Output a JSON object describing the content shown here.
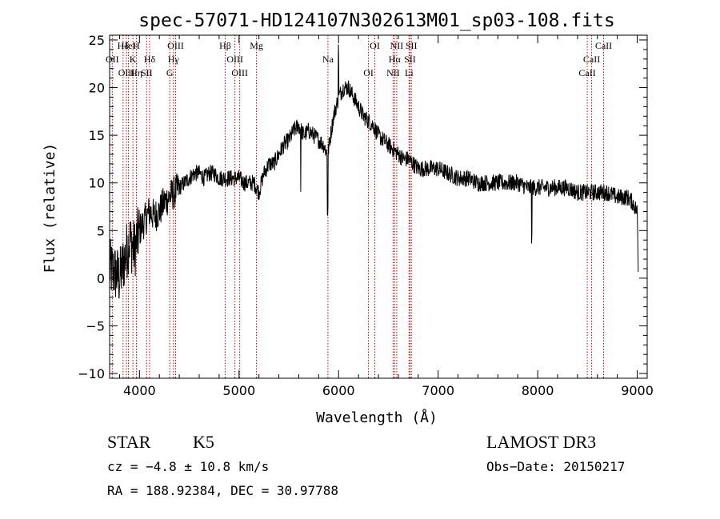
{
  "chart_data": {
    "type": "line",
    "title": "spec-57071-HD124107N302613M01_sp03-108.fits",
    "xlabel": "Wavelength (Å)",
    "ylabel": "Flux (relative)",
    "xlim": [
      3700,
      9100
    ],
    "ylim": [
      -10.5,
      25.5
    ],
    "x_ticks": [
      4000,
      5000,
      6000,
      7000,
      8000,
      9000
    ],
    "y_ticks": [
      -10,
      -5,
      0,
      5,
      10,
      15,
      20,
      25
    ],
    "x_tick_labels": [
      "4000",
      "5000",
      "6000",
      "7000",
      "8000",
      "9000"
    ],
    "y_tick_labels": [
      "−10",
      "−5",
      "0",
      "5",
      "10",
      "15",
      "20",
      "25"
    ],
    "spectrum_shape": {
      "x": [
        3700,
        3760,
        3800,
        3850,
        3900,
        3950,
        4000,
        4050,
        4100,
        4150,
        4200,
        4250,
        4300,
        4350,
        4400,
        4450,
        4500,
        4550,
        4600,
        4650,
        4700,
        4750,
        4800,
        4850,
        4900,
        4950,
        5000,
        5050,
        5100,
        5150,
        5200,
        5250,
        5300,
        5350,
        5400,
        5450,
        5500,
        5550,
        5600,
        5650,
        5700,
        5750,
        5800,
        5850,
        5890,
        5950,
        6000,
        6050,
        6100,
        6150,
        6200,
        6250,
        6300,
        6350,
        6400,
        6450,
        6500,
        6550,
        6600,
        6650,
        6700,
        6750,
        6800,
        6900,
        7000,
        7100,
        7200,
        7300,
        7400,
        7500,
        7600,
        7700,
        7800,
        7900,
        8000,
        8100,
        8200,
        8300,
        8400,
        8500,
        8600,
        8700,
        8800,
        8900,
        8950,
        9000,
        9010
      ],
      "y": [
        1,
        0.5,
        0,
        2,
        4,
        3,
        5,
        6,
        7,
        6.5,
        7,
        8,
        8.5,
        9,
        9.5,
        10,
        10.5,
        11,
        11,
        10.5,
        11,
        11,
        10.5,
        10.5,
        10.5,
        10.5,
        10.5,
        10,
        10,
        10,
        9,
        11,
        12,
        12,
        13,
        14,
        14.5,
        15.5,
        16,
        15,
        15.5,
        15,
        14.5,
        14,
        13,
        17,
        19,
        20,
        20,
        19,
        18,
        17,
        16.5,
        16,
        15,
        14.5,
        14,
        13.5,
        13,
        12.5,
        12.5,
        12,
        11.5,
        11.5,
        11.5,
        11,
        10.5,
        10.5,
        10,
        10,
        10,
        10,
        10,
        9.5,
        9.5,
        9.5,
        9.5,
        9.5,
        9,
        9,
        9,
        9,
        8.5,
        8.5,
        8,
        7,
        1
      ]
    },
    "spectral_lines": [
      {
        "label": "Hδ",
        "wavelength": 3835
      },
      {
        "label": "OII",
        "wavelength": 3727
      },
      {
        "label": "OIII",
        "wavelength": 3869
      },
      {
        "label": "HeI",
        "wavelength": 3889
      },
      {
        "label": "K",
        "wavelength": 3934
      },
      {
        "label": "Hη",
        "wavelength": 3970
      },
      {
        "label": "H",
        "wavelength": 3969
      },
      {
        "label": "Hδ",
        "wavelength": 4102
      },
      {
        "label": "SII",
        "wavelength": 4072
      },
      {
        "label": "OIII",
        "wavelength": 4363
      },
      {
        "label": "Hγ",
        "wavelength": 4341
      },
      {
        "label": "G",
        "wavelength": 4304
      },
      {
        "label": "Hβ",
        "wavelength": 4861
      },
      {
        "label": "OIII",
        "wavelength": 4959
      },
      {
        "label": "OIII",
        "wavelength": 5007
      },
      {
        "label": "Mg",
        "wavelength": 5175
      },
      {
        "label": "Na",
        "wavelength": 5893
      },
      {
        "label": "OI",
        "wavelength": 6300
      },
      {
        "label": "OI",
        "wavelength": 6364
      },
      {
        "label": "Hα",
        "wavelength": 6563
      },
      {
        "label": "NII",
        "wavelength": 6548
      },
      {
        "label": "NII",
        "wavelength": 6584
      },
      {
        "label": "SII",
        "wavelength": 6717
      },
      {
        "label": "Li",
        "wavelength": 6708
      },
      {
        "label": "SII",
        "wavelength": 6731
      },
      {
        "label": "CaII",
        "wavelength": 8542
      },
      {
        "label": "CaII",
        "wavelength": 8498
      },
      {
        "label": "CaII",
        "wavelength": 8662
      }
    ]
  },
  "info": {
    "class_label": "STAR",
    "subclass": "K5",
    "survey": "LAMOST DR3",
    "cz": "cz = −4.8 ± 10.8 km/s",
    "obs_date": "Obs−Date: 20150217",
    "coords": "RA = 188.92384, DEC =  30.97788"
  },
  "colors": {
    "spectrum": "#000000",
    "line_markers": "#cc0000",
    "axes": "#000000"
  }
}
